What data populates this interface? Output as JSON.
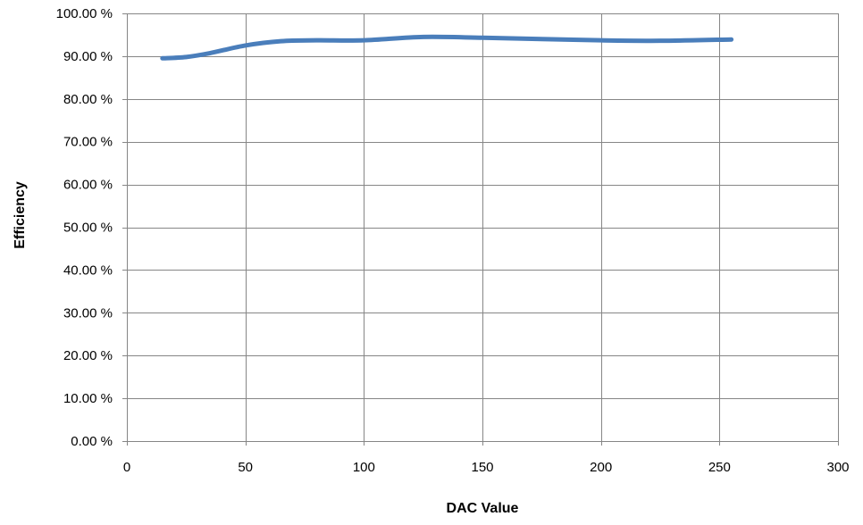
{
  "chart_data": {
    "type": "line",
    "title": "",
    "xlabel": "DAC Value",
    "ylabel": "Efficiency",
    "xlim": [
      0,
      300
    ],
    "ylim": [
      0,
      1
    ],
    "x_ticks": [
      0,
      50,
      100,
      150,
      200,
      250,
      300
    ],
    "x_tick_labels": [
      "0",
      "50",
      "100",
      "150",
      "200",
      "250",
      "300"
    ],
    "y_ticks": [
      0,
      0.1,
      0.2,
      0.3,
      0.4,
      0.5,
      0.6,
      0.7,
      0.8,
      0.9,
      1.0
    ],
    "y_tick_labels": [
      "0.00 %",
      "10.00 %",
      "20.00 %",
      "30.00 %",
      "40.00 %",
      "50.00 %",
      "60.00 %",
      "70.00 %",
      "80.00 %",
      "90.00 %",
      "100.00 %"
    ],
    "grid": true,
    "legend": "none",
    "series": [
      {
        "color": "#4a7ebb",
        "x": [
          15,
          25,
          35,
          50,
          65,
          80,
          100,
          125,
          150,
          175,
          200,
          225,
          255
        ],
        "y": [
          0.895,
          0.898,
          0.907,
          0.925,
          0.935,
          0.937,
          0.937,
          0.945,
          0.943,
          0.94,
          0.937,
          0.936,
          0.939
        ]
      }
    ]
  }
}
